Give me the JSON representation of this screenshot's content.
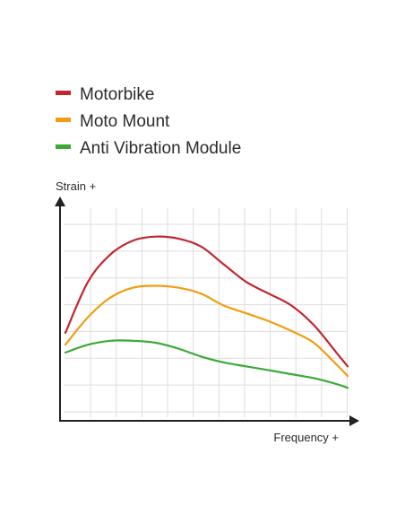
{
  "chart_data": {
    "type": "line",
    "xlabel": "Frequency +",
    "ylabel": "Strain +",
    "xlim": [
      0,
      10
    ],
    "ylim": [
      0,
      10
    ],
    "grid": true,
    "legend_position": "top-left",
    "x": [
      0,
      0.8,
      1.6,
      2.4,
      3.2,
      4.0,
      4.8,
      5.6,
      6.4,
      7.2,
      8.0,
      8.8,
      9.6,
      10.0
    ],
    "series": [
      {
        "name": "Motorbike",
        "color": "#c0272d",
        "values": [
          4.2,
          6.8,
          8.2,
          8.9,
          9.1,
          9.0,
          8.6,
          7.7,
          6.8,
          6.2,
          5.6,
          4.6,
          3.2,
          2.5
        ]
      },
      {
        "name": "Moto Mount",
        "color": "#f39c12",
        "values": [
          3.6,
          5.0,
          6.0,
          6.5,
          6.6,
          6.5,
          6.2,
          5.6,
          5.2,
          4.8,
          4.3,
          3.7,
          2.6,
          2.0
        ]
      },
      {
        "name": "Anti Vibration Module",
        "color": "#3aaa35",
        "values": [
          3.2,
          3.6,
          3.8,
          3.8,
          3.7,
          3.4,
          3.0,
          2.7,
          2.5,
          2.3,
          2.1,
          1.9,
          1.6,
          1.4
        ]
      }
    ]
  },
  "colors": {
    "axis": "#222222",
    "grid": "#dddddd",
    "text": "#2b2b2b"
  }
}
